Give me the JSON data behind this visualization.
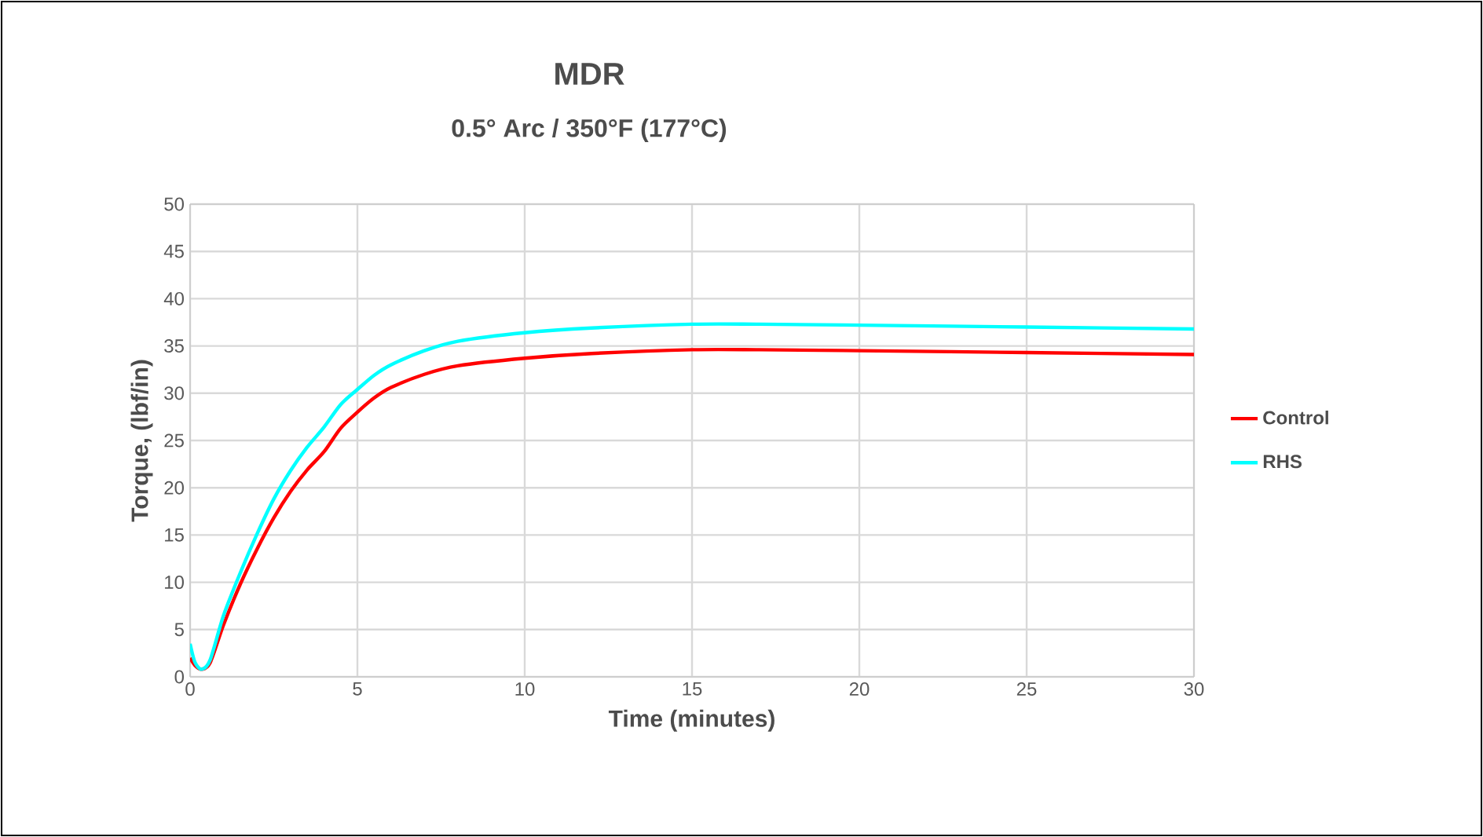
{
  "chart_data": {
    "type": "line",
    "title": "MDR",
    "subtitle": "0.5° Arc / 350°F (177°C)",
    "xlabel": "Time (minutes)",
    "ylabel": "Torque, (lbf/in)",
    "xlim": [
      0,
      30
    ],
    "ylim": [
      0,
      50
    ],
    "xticks": [
      0,
      5,
      10,
      15,
      20,
      25,
      30
    ],
    "yticks": [
      0,
      5,
      10,
      15,
      20,
      25,
      30,
      35,
      40,
      45,
      50
    ],
    "grid": true,
    "legend": "right",
    "marker": "none",
    "line_style": "solid",
    "series": [
      {
        "name": "Control",
        "color": "#ff0000",
        "x": [
          0,
          0.15,
          0.35,
          0.6,
          1,
          1.5,
          2,
          2.5,
          3,
          3.5,
          4,
          4.5,
          5,
          5.5,
          6,
          7,
          8,
          10,
          12,
          15,
          17,
          20,
          25,
          30
        ],
        "values": [
          2,
          1.2,
          0.8,
          1.5,
          5.5,
          9.8,
          13.5,
          16.8,
          19.6,
          21.9,
          23.8,
          26.3,
          28.0,
          29.5,
          30.6,
          32.0,
          32.9,
          33.7,
          34.2,
          34.6,
          34.6,
          34.5,
          34.3,
          34.1
        ]
      },
      {
        "name": "RHS",
        "color": "#00ffff",
        "x": [
          0,
          0.15,
          0.35,
          0.6,
          1,
          1.5,
          2,
          2.5,
          3,
          3.5,
          4,
          4.5,
          5,
          5.5,
          6,
          7,
          8,
          10,
          12,
          15,
          17,
          20,
          25,
          30
        ],
        "values": [
          3.5,
          1.5,
          0.8,
          1.8,
          6.5,
          11.0,
          15.1,
          18.8,
          21.8,
          24.3,
          26.4,
          28.8,
          30.4,
          31.9,
          33.0,
          34.5,
          35.5,
          36.4,
          36.9,
          37.3,
          37.3,
          37.2,
          37.0,
          36.8
        ]
      }
    ]
  }
}
